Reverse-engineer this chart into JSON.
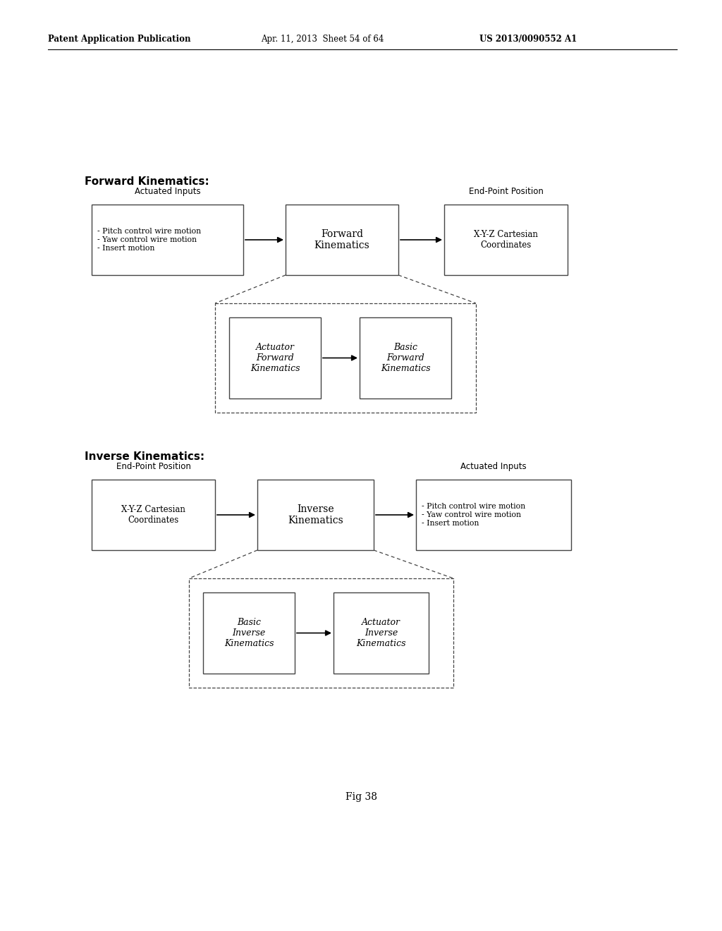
{
  "header_left": "Patent Application Publication",
  "header_mid": "Apr. 11, 2013  Sheet 54 of 64",
  "header_right": "US 2013/0090552 A1",
  "fig_label": "Fig 38",
  "bg_color": "#ffffff",
  "section1_title": "Forward Kinematics:",
  "section2_title": "Inverse Kinematics:",
  "fwd_actuated_label": "Actuated Inputs",
  "fwd_actuated_text": "- Pitch control wire motion\n- Yaw control wire motion\n- Insert motion",
  "fwd_center_text": "Forward\nKinematics",
  "fwd_endpoint_label": "End-Point Position",
  "fwd_endpoint_text": "X-Y-Z Cartesian\nCoordinates",
  "fwd_sub1_text": "Actuator\nForward\nKinematics",
  "fwd_sub2_text": "Basic\nForward\nKinematics",
  "inv_endpoint_label": "End-Point Position",
  "inv_endpoint_text": "X-Y-Z Cartesian\nCoordinates",
  "inv_center_text": "Inverse\nKinematics",
  "inv_actuated_label": "Actuated Inputs",
  "inv_actuated_text": "- Pitch control wire motion\n- Yaw control wire motion\n- Insert motion",
  "inv_sub1_text": "Basic\nInverse\nKinematics",
  "inv_sub2_text": "Actuator\nInverse\nKinematics",
  "lc": "#444444"
}
